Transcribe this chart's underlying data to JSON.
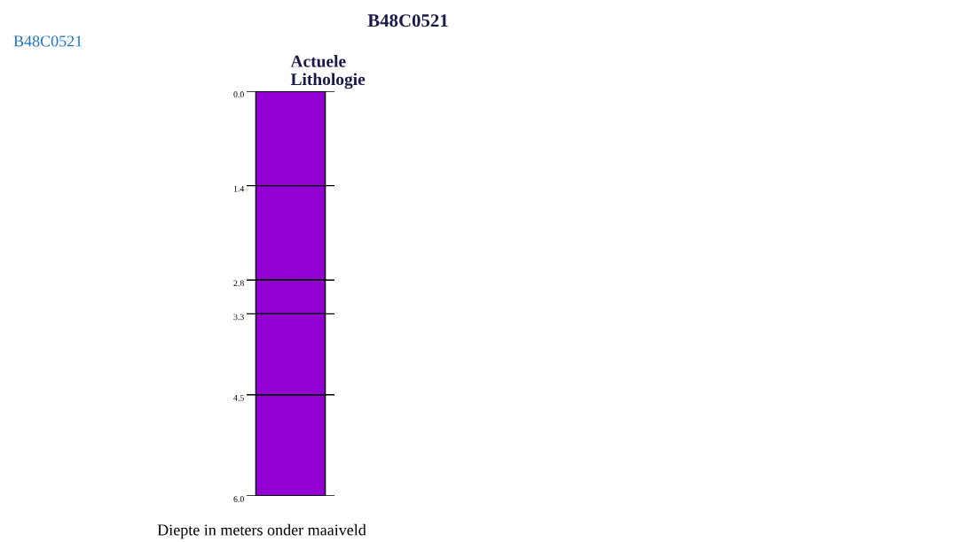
{
  "chart_data": {
    "type": "bar",
    "title": "B48C0521",
    "xlabel": "Diepte in meters onder maaiveld",
    "annotations": [
      "B48C0521"
    ],
    "categories": [
      "Actuele Lithologie"
    ],
    "stacked": true,
    "series": [
      {
        "color": "#9400d3",
        "values": [
          1.4
        ]
      },
      {
        "color": "#9400d3",
        "values": [
          1.4
        ]
      },
      {
        "color": "#9400d3",
        "values": [
          0.5
        ]
      },
      {
        "color": "#9400d3",
        "values": [
          1.2
        ]
      },
      {
        "color": "#9400d3",
        "values": [
          1.5
        ]
      }
    ],
    "ylim": [
      6.0,
      0.0
    ],
    "yticks": [
      {
        "value": 0,
        "label": "0.0"
      },
      {
        "value": 1.4,
        "label": "1.4"
      },
      {
        "value": 2.8,
        "label": "2.8"
      },
      {
        "value": 3.3,
        "label": "3.3"
      },
      {
        "value": 4.5,
        "label": "4.5"
      },
      {
        "value": 6.0,
        "label": "6.0"
      }
    ],
    "grid": "y"
  }
}
